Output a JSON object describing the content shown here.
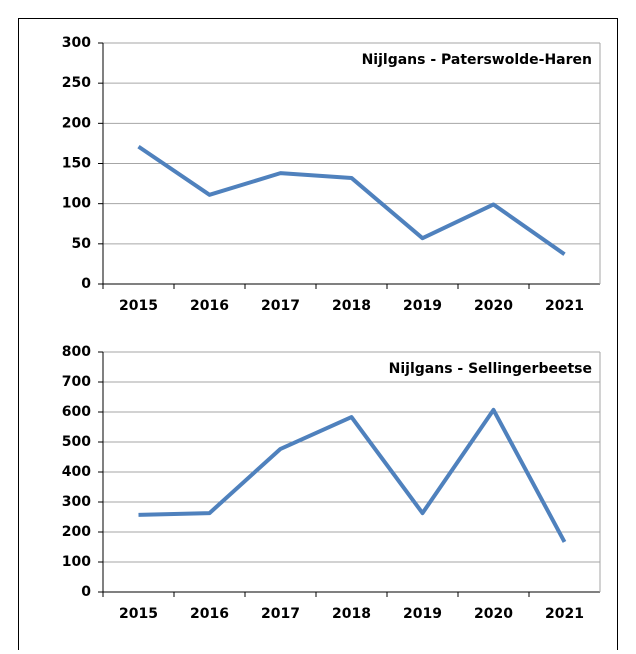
{
  "chart_data": [
    {
      "type": "line",
      "title": "Nijlgans - Paterswolde-Haren",
      "categories": [
        "2015",
        "2016",
        "2017",
        "2018",
        "2019",
        "2020",
        "2021"
      ],
      "series": [
        {
          "name": "Nijlgans",
          "color": "#4f81bd",
          "values": [
            171,
            111,
            138,
            132,
            57,
            99,
            37
          ]
        }
      ],
      "ylim": [
        0,
        300
      ],
      "yticks": [
        0,
        50,
        100,
        150,
        200,
        250,
        300
      ],
      "grid": true
    },
    {
      "type": "line",
      "title": "Nijlgans - Sellingerbeetse",
      "categories": [
        "2015",
        "2016",
        "2017",
        "2018",
        "2019",
        "2020",
        "2021"
      ],
      "series": [
        {
          "name": "Nijlgans",
          "color": "#4f81bd",
          "values": [
            257,
            263,
            477,
            583,
            263,
            607,
            167
          ]
        }
      ],
      "ylim": [
        0,
        800
      ],
      "yticks": [
        0,
        100,
        200,
        300,
        400,
        500,
        600,
        700,
        800
      ],
      "grid": true
    }
  ]
}
